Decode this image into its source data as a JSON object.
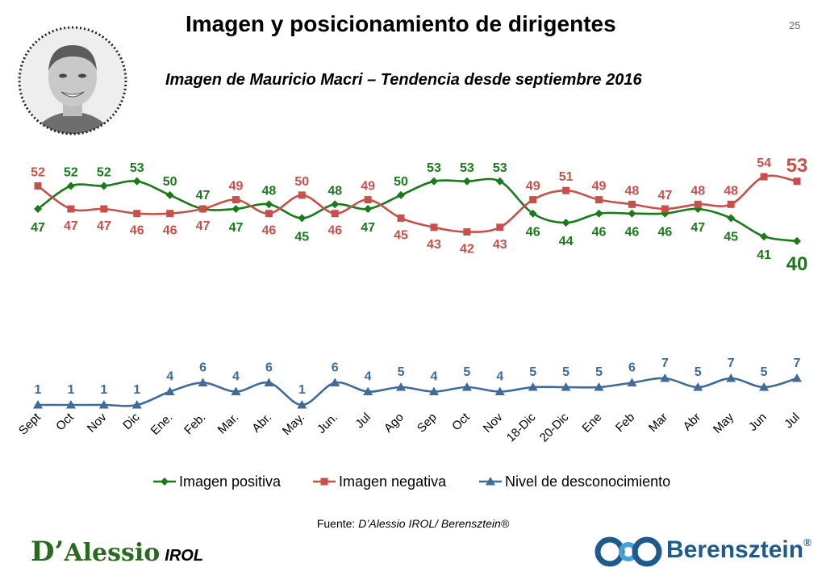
{
  "header": {
    "title": "Imagen y posicionamiento de dirigentes",
    "page_number": "25",
    "subtitle": "Imagen de Mauricio Macri – Tendencia desde septiembre 2016"
  },
  "source": {
    "prefix": "Fuente: ",
    "text": "D’Alessio IROL/ Berensztein®"
  },
  "logos": {
    "left_initial": "D’",
    "left_name": "Alessio",
    "left_suffix": "IROL",
    "right_name": "Berensztein",
    "right_mark": "®"
  },
  "colors": {
    "positive": "#1a7a1a",
    "negative": "#c8504a",
    "unknown": "#3f6a9a"
  },
  "chart_data": {
    "type": "line",
    "categories": [
      "Sept",
      "Oct",
      "Nov",
      "Dic",
      "Ene.",
      "Feb.",
      "Mar.",
      "Abr.",
      "May.",
      "Jun.",
      "Jul",
      "Ago",
      "Sep",
      "Oct",
      "Nov",
      "18-Dic",
      "20-Dic",
      "Ene",
      "Feb",
      "Mar",
      "Abr",
      "May",
      "Jun",
      "Jul"
    ],
    "series": [
      {
        "name": "Imagen positiva",
        "marker": "diamond",
        "values": [
          47,
          52,
          52,
          53,
          50,
          47,
          47,
          48,
          45,
          48,
          47,
          50,
          53,
          53,
          53,
          46,
          44,
          46,
          46,
          46,
          47,
          45,
          41,
          40
        ]
      },
      {
        "name": "Imagen negativa",
        "marker": "square",
        "values": [
          52,
          47,
          47,
          46,
          46,
          47,
          49,
          46,
          50,
          46,
          49,
          45,
          43,
          42,
          43,
          49,
          51,
          49,
          48,
          47,
          48,
          48,
          54,
          53
        ]
      },
      {
        "name": "Nivel de desconocimiento",
        "marker": "triangle",
        "values": [
          1,
          1,
          1,
          1,
          4,
          6,
          4,
          6,
          1,
          6,
          4,
          5,
          4,
          5,
          4,
          5,
          5,
          5,
          6,
          7,
          5,
          7,
          5,
          7
        ]
      }
    ],
    "legend_position": "bottom",
    "grid": false
  }
}
